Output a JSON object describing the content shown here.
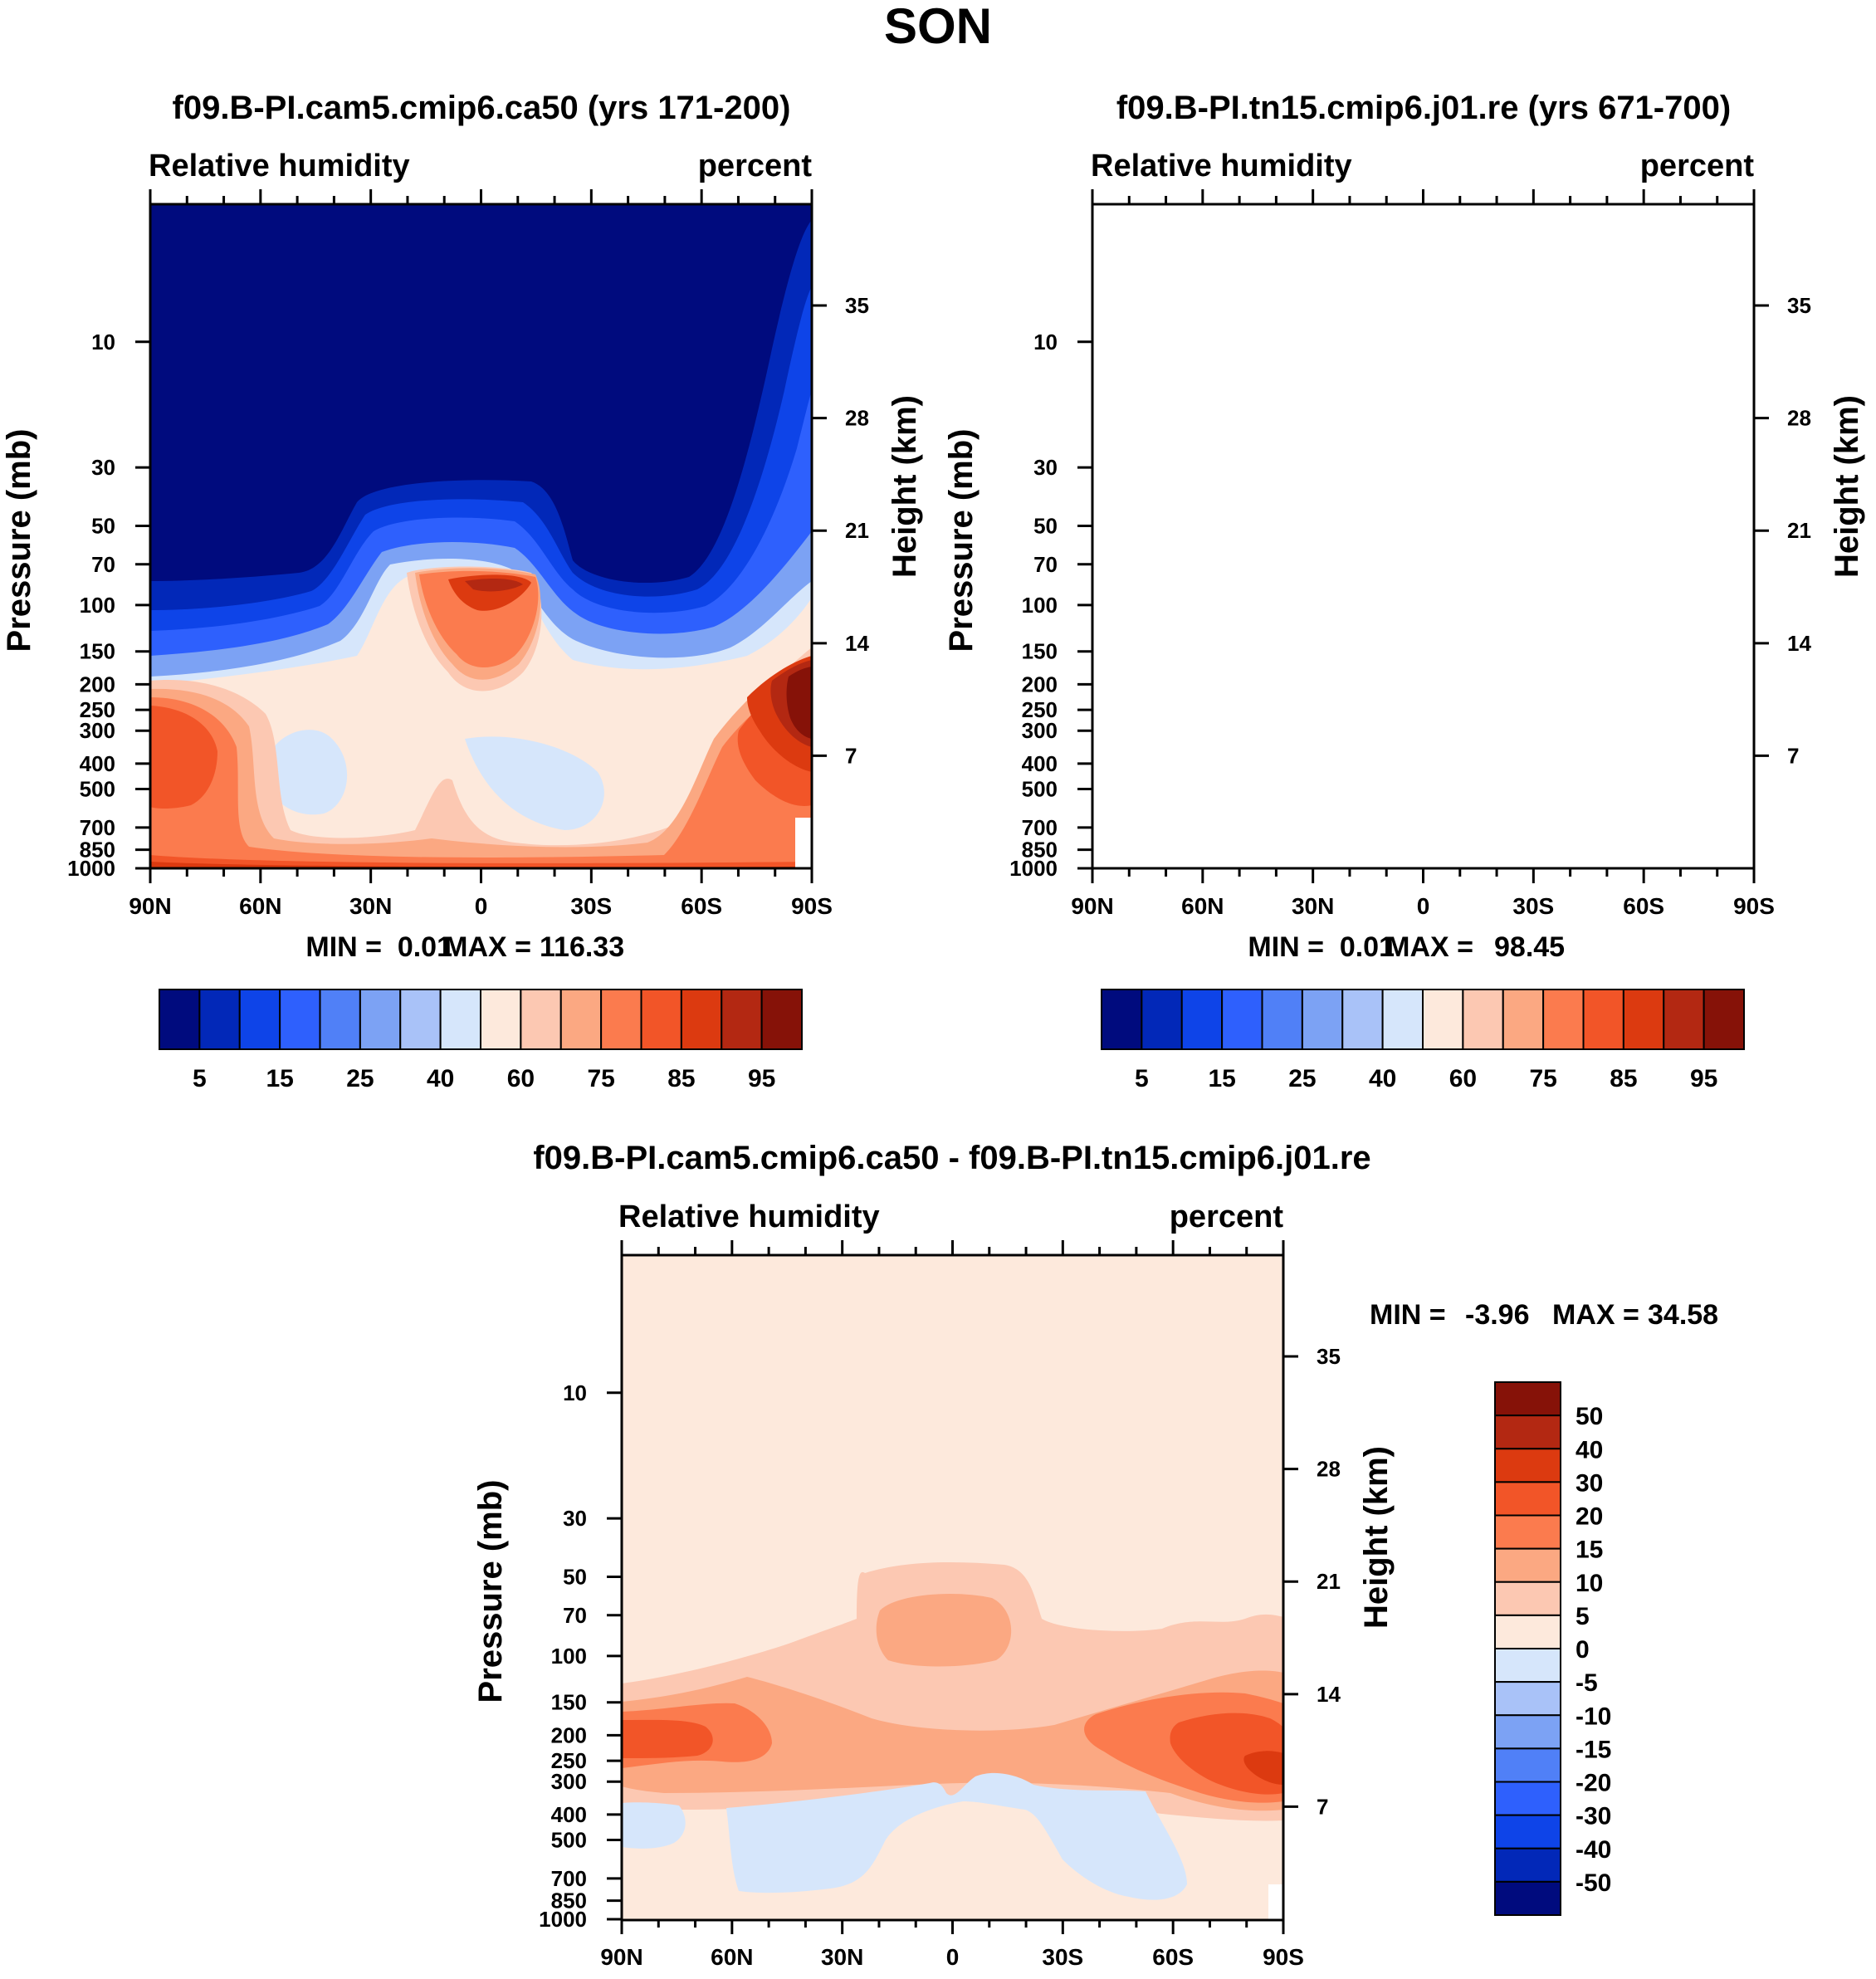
{
  "figure_title": "SON",
  "chart_data": [
    {
      "type": "contour",
      "panel": "top-left",
      "title": "f09.B-PI.cam5.cmip6.ca50 (yrs 171-200)",
      "variable": "Relative humidity",
      "units": "percent",
      "ylabel": "Pressure (mb)",
      "ylabel_right": "Height (km)",
      "x_ticks": [
        "90N",
        "60N",
        "30N",
        "0",
        "30S",
        "60S",
        "90S"
      ],
      "y_ticks": [
        10,
        30,
        50,
        70,
        100,
        150,
        200,
        250,
        300,
        400,
        500,
        700,
        850,
        1000
      ],
      "height_ticks": [
        35,
        28,
        21,
        14,
        7
      ],
      "stats": {
        "min_label": "MIN =",
        "min": "0.01",
        "max_label": "MAX =",
        "max": "116.33"
      },
      "contour_levels": [
        5,
        10,
        15,
        20,
        25,
        30,
        40,
        50,
        60,
        70,
        75,
        80,
        85,
        90,
        95
      ],
      "colorbar_labels": [
        "5",
        "15",
        "25",
        "40",
        "60",
        "75",
        "85",
        "95"
      ],
      "colors": [
        "#000b7e",
        "#0228b8",
        "#0e44e8",
        "#2e60fd",
        "#5080f7",
        "#7ca2f4",
        "#a9c2f8",
        "#d6e6fb",
        "#fde9dc",
        "#fcc8b2",
        "#fba882",
        "#fb7b4e",
        "#f25528",
        "#dc3a10",
        "#b32812",
        "#861208"
      ]
    },
    {
      "type": "contour",
      "panel": "top-right",
      "title": "f09.B-PI.tn15.cmip6.j01.re (yrs 671-700)",
      "variable": "Relative humidity",
      "units": "percent",
      "ylabel": "Pressure (mb)",
      "ylabel_right": "Height (km)",
      "x_ticks": [
        "90N",
        "60N",
        "30N",
        "0",
        "30S",
        "60S",
        "90S"
      ],
      "y_ticks": [
        10,
        30,
        50,
        70,
        100,
        150,
        200,
        250,
        300,
        400,
        500,
        700,
        850,
        1000
      ],
      "height_ticks": [
        35,
        28,
        21,
        14,
        7
      ],
      "stats": {
        "min_label": "MIN =",
        "min": "0.01",
        "max_label": "MAX =",
        "max": "98.45"
      },
      "contour_levels": [
        5,
        10,
        15,
        20,
        25,
        30,
        40,
        50,
        60,
        70,
        75,
        80,
        85,
        90,
        95
      ],
      "colorbar_labels": [
        "5",
        "15",
        "25",
        "40",
        "60",
        "75",
        "85",
        "95"
      ],
      "colors": [
        "#000b7e",
        "#0228b8",
        "#0e44e8",
        "#2e60fd",
        "#5080f7",
        "#7ca2f4",
        "#a9c2f8",
        "#d6e6fb",
        "#fde9dc",
        "#fcc8b2",
        "#fba882",
        "#fb7b4e",
        "#f25528",
        "#dc3a10",
        "#b32812",
        "#861208"
      ]
    },
    {
      "type": "contour",
      "panel": "bottom-difference",
      "title": "f09.B-PI.cam5.cmip6.ca50 - f09.B-PI.tn15.cmip6.j01.re",
      "variable": "Relative humidity",
      "units": "percent",
      "ylabel": "Pressure (mb)",
      "ylabel_right": "Height (km)",
      "x_ticks": [
        "90N",
        "60N",
        "30N",
        "0",
        "30S",
        "60S",
        "90S"
      ],
      "y_ticks": [
        10,
        30,
        50,
        70,
        100,
        150,
        200,
        250,
        300,
        400,
        500,
        700,
        850,
        1000
      ],
      "height_ticks": [
        35,
        28,
        21,
        14,
        7
      ],
      "stats": {
        "min_label": "MIN =",
        "min": "-3.96",
        "max_label": "MAX =",
        "max": "34.58"
      },
      "colorbar_labels": [
        "50",
        "40",
        "30",
        "20",
        "15",
        "10",
        "5",
        "0",
        "-5",
        "-10",
        "-15",
        "-20",
        "-30",
        "-40",
        "-50"
      ],
      "colors": [
        "#861208",
        "#b32812",
        "#dc3a10",
        "#f25528",
        "#fb7b4e",
        "#fba882",
        "#fcc8b2",
        "#fde9dc",
        "#d6e6fb",
        "#a9c2f8",
        "#7ca2f4",
        "#5080f7",
        "#2e60fd",
        "#0e44e8",
        "#0228b8",
        "#000b7e"
      ]
    }
  ]
}
